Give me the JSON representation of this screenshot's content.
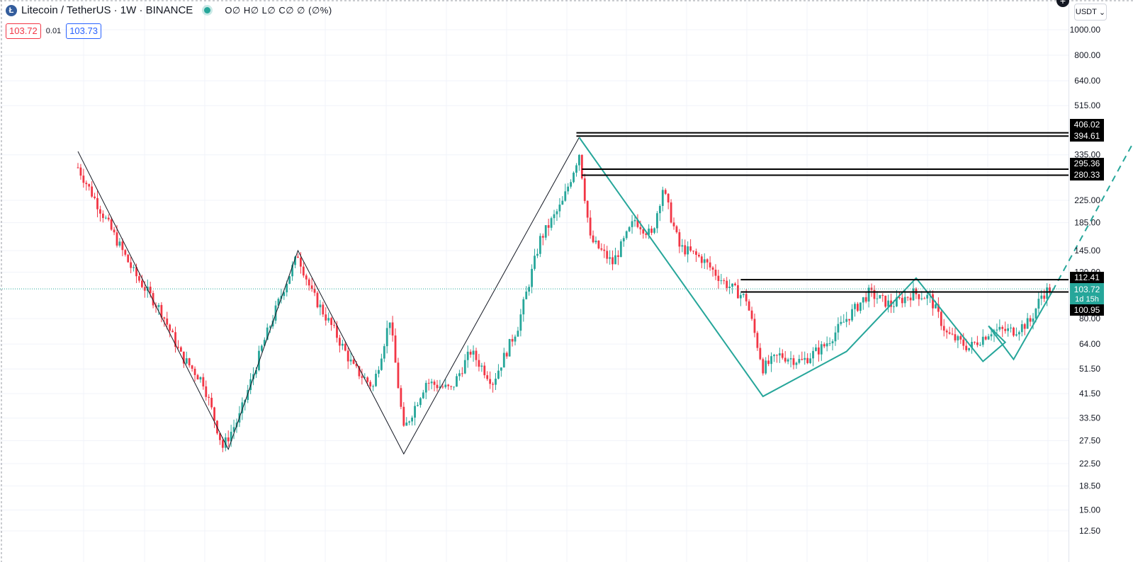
{
  "header": {
    "symbol_title": "Litecoin / TetherUS · 1W · BINANCE",
    "logo_glyph": "Ł",
    "ohlc_text": "O∅ H∅ L∅ C∅ ∅ (∅%)",
    "sell_price": "103.72",
    "spread": "0.01",
    "buy_price": "103.73",
    "currency": "USDT"
  },
  "colors": {
    "up": "#26a69a",
    "down": "#f23645",
    "pattern_line": "#26a69a",
    "trend_line": "#131722",
    "level_line": "#000000",
    "grid": "#f0f3fa"
  },
  "chart_data": {
    "type": "candlestick",
    "symbol": "LTCUSDT",
    "interval": "1W",
    "exchange": "BINANCE",
    "y_scale": "log",
    "ylim": [
      11,
      1150
    ],
    "y_ticks": [
      "1000.00",
      "800.00",
      "640.00",
      "515.00",
      "335.00",
      "225.00",
      "185.00",
      "145.00",
      "120.00",
      "80.00",
      "64.00",
      "51.50",
      "41.50",
      "33.50",
      "27.50",
      "22.50",
      "18.50",
      "15.00",
      "12.50"
    ],
    "last_price": "103.72",
    "countdown": "1d 15h",
    "levels": [
      {
        "label": "406.02",
        "value": 406.02
      },
      {
        "label": "394.61",
        "value": 394.61
      },
      {
        "label": "295.36",
        "value": 295.36
      },
      {
        "label": "280.33",
        "value": 280.33
      },
      {
        "label": "112.41",
        "value": 112.41
      },
      {
        "label": "100.95",
        "value": 100.95
      }
    ],
    "price_path_anchors": [
      {
        "bar": 0,
        "price": 300
      },
      {
        "bar": 10,
        "price": 190
      },
      {
        "bar": 20,
        "price": 120
      },
      {
        "bar": 30,
        "price": 85
      },
      {
        "bar": 37,
        "price": 58
      },
      {
        "bar": 45,
        "price": 46
      },
      {
        "bar": 52,
        "price": 26
      },
      {
        "bar": 58,
        "price": 34
      },
      {
        "bar": 66,
        "price": 62
      },
      {
        "bar": 74,
        "price": 105
      },
      {
        "bar": 79,
        "price": 140
      },
      {
        "bar": 84,
        "price": 100
      },
      {
        "bar": 92,
        "price": 72
      },
      {
        "bar": 99,
        "price": 52
      },
      {
        "bar": 106,
        "price": 44
      },
      {
        "bar": 112,
        "price": 80
      },
      {
        "bar": 117,
        "price": 30
      },
      {
        "bar": 125,
        "price": 46
      },
      {
        "bar": 134,
        "price": 43
      },
      {
        "bar": 141,
        "price": 60
      },
      {
        "bar": 149,
        "price": 46
      },
      {
        "bar": 158,
        "price": 75
      },
      {
        "bar": 166,
        "price": 160
      },
      {
        "bar": 174,
        "price": 220
      },
      {
        "bar": 180,
        "price": 340
      },
      {
        "bar": 184,
        "price": 160
      },
      {
        "bar": 192,
        "price": 130
      },
      {
        "bar": 200,
        "price": 190
      },
      {
        "bar": 206,
        "price": 165
      },
      {
        "bar": 210,
        "price": 250
      },
      {
        "bar": 216,
        "price": 150
      },
      {
        "bar": 224,
        "price": 135
      },
      {
        "bar": 232,
        "price": 110
      },
      {
        "bar": 240,
        "price": 95
      },
      {
        "bar": 246,
        "price": 52
      },
      {
        "bar": 252,
        "price": 58
      },
      {
        "bar": 260,
        "price": 55
      },
      {
        "bar": 268,
        "price": 63
      },
      {
        "bar": 276,
        "price": 80
      },
      {
        "bar": 284,
        "price": 100
      },
      {
        "bar": 292,
        "price": 90
      },
      {
        "bar": 300,
        "price": 100
      },
      {
        "bar": 306,
        "price": 96
      },
      {
        "bar": 312,
        "price": 70
      },
      {
        "bar": 320,
        "price": 62
      },
      {
        "bar": 328,
        "price": 72
      },
      {
        "bar": 336,
        "price": 72
      },
      {
        "bar": 342,
        "price": 78
      },
      {
        "bar": 346,
        "price": 98
      },
      {
        "bar": 349,
        "price": 104
      }
    ],
    "zigzag_black": [
      {
        "bar": 0,
        "price": 345
      },
      {
        "bar": 54,
        "price": 25.5
      },
      {
        "bar": 79,
        "price": 145
      },
      {
        "bar": 117,
        "price": 24.5
      },
      {
        "bar": 180,
        "price": 390
      }
    ],
    "zigzag_teal": [
      {
        "bar": 180,
        "price": 390
      },
      {
        "bar": 246,
        "price": 40.5
      },
      {
        "bar": 276,
        "price": 60
      },
      {
        "bar": 301,
        "price": 114
      },
      {
        "bar": 325,
        "price": 55
      },
      {
        "bar": 333,
        "price": 65
      },
      {
        "bar": 327,
        "price": 75
      },
      {
        "bar": 336,
        "price": 56
      },
      {
        "bar": 350,
        "price": 102
      }
    ],
    "projection_dashed": [
      {
        "bar": 350,
        "price": 102
      },
      {
        "bar": 380,
        "price": 390
      }
    ]
  }
}
